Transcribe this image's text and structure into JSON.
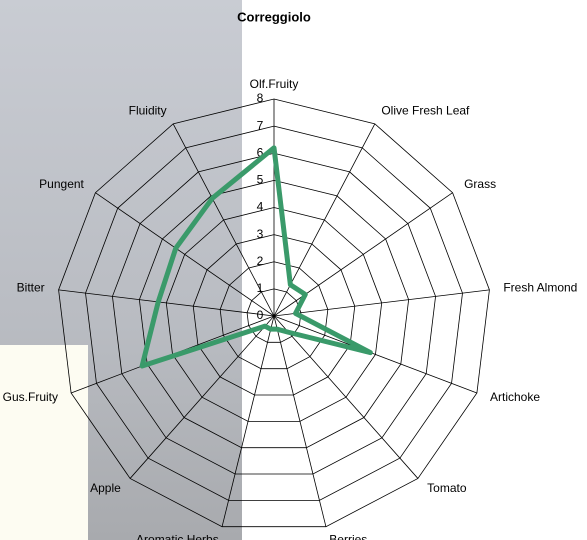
{
  "chart_data": {
    "type": "radar",
    "title": "Correggiolo",
    "categories": [
      "Olf.Fruity",
      "Olive Fresh Leaf",
      "Grass",
      "Fresh Almond",
      "Artichoke",
      "Tomato",
      "Berries",
      "Aromatic Herbs",
      "Apple",
      "Gus.Fruity",
      "Bitter",
      "Pungent",
      "Fluidity"
    ],
    "series": [
      {
        "name": "Correggiolo",
        "color": "#3a9a6a",
        "values": [
          6.2,
          1.3,
          1.4,
          0.8,
          3.8,
          0.8,
          0.5,
          0.5,
          0.5,
          5.2,
          4.3,
          4.4,
          4.9
        ]
      }
    ],
    "ylim": [
      0,
      8
    ],
    "yticks": [
      0,
      1,
      2,
      3,
      4,
      5,
      6,
      7,
      8
    ],
    "grid": true
  }
}
